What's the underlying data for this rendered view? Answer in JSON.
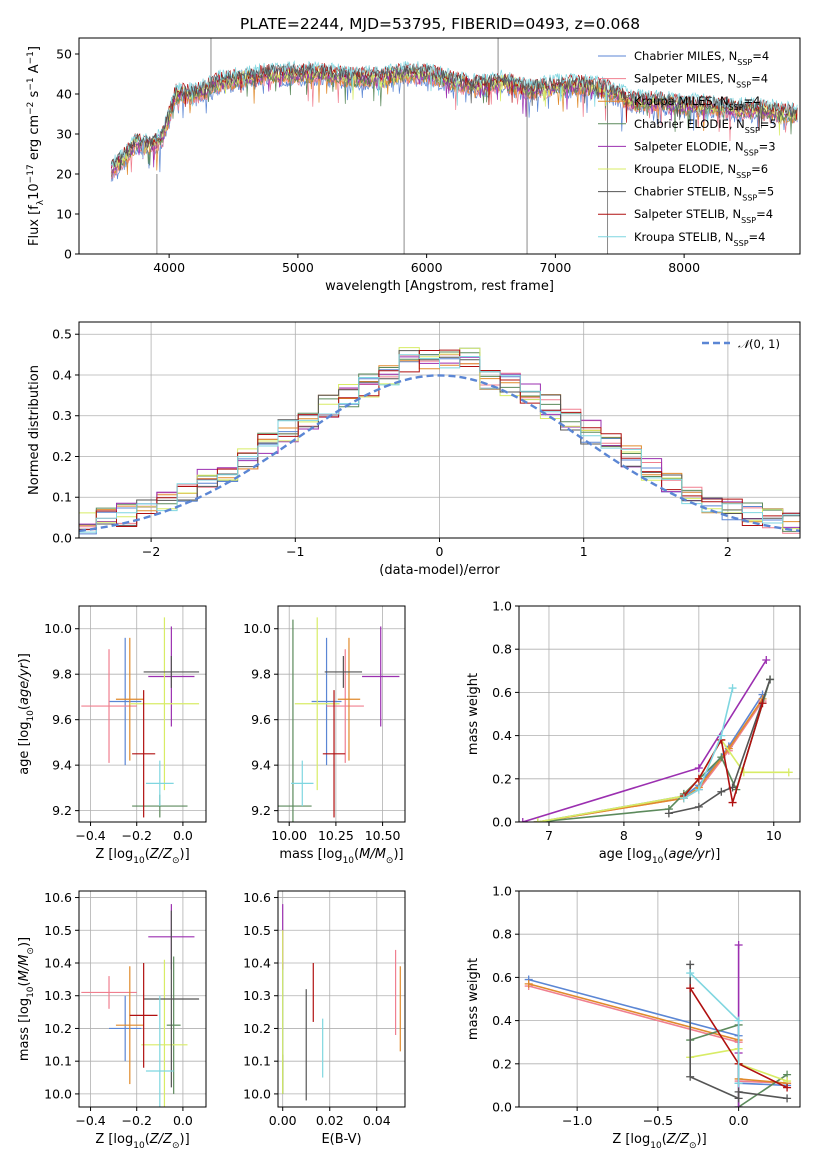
{
  "figure_title": "PLATE=2244, MJD=53795, FIBERID=0493, z=0.068",
  "series_colors": [
    "#5b86d4",
    "#f07f8f",
    "#e08a2c",
    "#5c8a5c",
    "#9b2fb0",
    "#d8ec66",
    "#555555",
    "#b01010",
    "#7fd6e0"
  ],
  "legend": [
    "Chabrier MILES, N_SSP=4",
    "Salpeter MILES, N_SSP=4",
    "Kroupa MILES, N_SSP=4",
    "Chabrier ELODIE, N_SSP=5",
    "Salpeter ELODIE, N_SSP=3",
    "Kroupa ELODIE, N_SSP=6",
    "Chabrier STELIB, N_SSP=5",
    "Salpeter STELIB, N_SSP=4",
    "Kroupa STELIB, N_SSP=4"
  ],
  "chart_data": [
    {
      "id": "spectrum",
      "type": "line",
      "xlabel": "wavelength [Angstrom, rest frame]",
      "ylabel": "Flux [f_λ 10^-17 erg cm^-2 s^-1 A^-1]",
      "xlim": [
        3300,
        8900
      ],
      "ylim": [
        0,
        54
      ],
      "xticks": [
        4000,
        5000,
        6000,
        7000,
        8000
      ],
      "yticks": [
        0,
        10,
        20,
        30,
        40,
        50
      ],
      "legend_position": "top-right",
      "grid": false,
      "continuum": {
        "x": [
          3550,
          3650,
          3750,
          3850,
          3950,
          4050,
          4200,
          4400,
          4600,
          4800,
          5000,
          5200,
          5400,
          5600,
          5800,
          6000,
          6200,
          6400,
          6600,
          6800,
          7000,
          7200,
          7400,
          7600,
          7800,
          8000,
          8200,
          8400,
          8600,
          8800
        ],
        "y": [
          21,
          24,
          28,
          27,
          29,
          40,
          40,
          43,
          44,
          45,
          45,
          45,
          44,
          44,
          45,
          45,
          43,
          42,
          43,
          41,
          42,
          42,
          41,
          38,
          38,
          37,
          37,
          36,
          36,
          35
        ]
      },
      "spikes": [
        {
          "x": 3905,
          "y_min": 0,
          "y_max": 20
        },
        {
          "x": 4325,
          "y_min": 40,
          "y_max": 54
        },
        {
          "x": 5825,
          "y_min": 0,
          "y_max": 45
        },
        {
          "x": 6555,
          "y_min": 45,
          "y_max": 54
        },
        {
          "x": 6780,
          "y_min": 0,
          "y_max": 42
        },
        {
          "x": 7405,
          "y_min": 0,
          "y_max": 40
        }
      ]
    },
    {
      "id": "residuals",
      "type": "line",
      "xlabel": "(data-model)/error",
      "ylabel": "Normed distribution",
      "xlim": [
        -2.5,
        2.5
      ],
      "ylim": [
        0,
        0.53
      ],
      "xticks": [
        -2,
        -1,
        0,
        1,
        2
      ],
      "yticks": [
        0.0,
        0.1,
        0.2,
        0.3,
        0.4,
        0.5
      ],
      "legend": "N(0,1)",
      "legend_position": "top-right",
      "grid": true
    },
    {
      "id": "age_vs_Z",
      "type": "scatter",
      "xlabel": "Z [log10(Z/Z_sun)]",
      "ylabel": "age [log10(age/yr)]",
      "xlim": [
        -0.45,
        0.1
      ],
      "ylim": [
        9.15,
        10.1
      ],
      "xticks": [
        -0.4,
        -0.2,
        0.0
      ],
      "yticks": [
        9.2,
        9.4,
        9.6,
        9.8,
        10.0
      ],
      "grid": true,
      "points": [
        {
          "series": 0,
          "x": -0.25,
          "y": 9.68,
          "xerr": 0.07,
          "yerr": 0.28
        },
        {
          "series": 1,
          "x": -0.32,
          "y": 9.66,
          "xerr": 0.12,
          "yerr": 0.25
        },
        {
          "series": 2,
          "x": -0.23,
          "y": 9.69,
          "xerr": 0.06,
          "yerr": 0.27
        },
        {
          "series": 3,
          "x": -0.1,
          "y": 9.22,
          "xerr": 0.12,
          "yerr": 0.05
        },
        {
          "series": 4,
          "x": -0.05,
          "y": 9.79,
          "xerr": 0.1,
          "yerr": 0.22
        },
        {
          "series": 5,
          "x": -0.08,
          "y": 9.67,
          "xerr": 0.15,
          "yerr": 0.38
        },
        {
          "series": 6,
          "x": -0.05,
          "y": 9.81,
          "xerr": 0.12,
          "yerr": 0.07
        },
        {
          "series": 7,
          "x": -0.17,
          "y": 9.45,
          "xerr": 0.05,
          "yerr": 0.28
        },
        {
          "series": 8,
          "x": -0.1,
          "y": 9.32,
          "xerr": 0.06,
          "yerr": 0.1
        }
      ]
    },
    {
      "id": "age_vs_mass",
      "type": "scatter",
      "xlabel": "mass [log10(M/M_sun)]",
      "ylabel": "",
      "xlim": [
        9.94,
        10.62
      ],
      "ylim": [
        9.15,
        10.1
      ],
      "xticks": [
        10.0,
        10.25,
        10.5
      ],
      "yticks": [
        9.2,
        9.4,
        9.6,
        9.8,
        10.0
      ],
      "grid": true,
      "points": [
        {
          "series": 0,
          "x": 10.2,
          "y": 9.68,
          "xerr": 0.08,
          "yerr": 0.28
        },
        {
          "series": 1,
          "x": 10.3,
          "y": 9.66,
          "xerr": 0.1,
          "yerr": 0.25
        },
        {
          "series": 2,
          "x": 10.32,
          "y": 9.69,
          "xerr": 0.06,
          "yerr": 0.27
        },
        {
          "series": 3,
          "x": 10.02,
          "y": 9.22,
          "xerr": 0.1,
          "yerr": 0.82
        },
        {
          "series": 4,
          "x": 10.49,
          "y": 9.79,
          "xerr": 0.1,
          "yerr": 0.22
        },
        {
          "series": 5,
          "x": 10.15,
          "y": 9.67,
          "xerr": 0.12,
          "yerr": 0.38
        },
        {
          "series": 6,
          "x": 10.29,
          "y": 9.81,
          "xerr": 0.1,
          "yerr": 0.07
        },
        {
          "series": 7,
          "x": 10.24,
          "y": 9.45,
          "xerr": 0.06,
          "yerr": 0.28
        },
        {
          "series": 8,
          "x": 10.07,
          "y": 9.32,
          "xerr": 0.06,
          "yerr": 0.1
        }
      ]
    },
    {
      "id": "weight_vs_age",
      "type": "line",
      "xlabel": "age [log10(age/yr)]",
      "ylabel": "mass weight",
      "xlim": [
        6.6,
        10.35
      ],
      "ylim": [
        0,
        1.0
      ],
      "xticks": [
        7,
        8,
        9,
        10
      ],
      "yticks": [
        0.0,
        0.2,
        0.4,
        0.6,
        0.8,
        1.0
      ],
      "grid": true,
      "series": [
        {
          "color_index": 0,
          "x": [
            6.85,
            8.8,
            9.0,
            9.4,
            9.85
          ],
          "y": [
            0.0,
            0.12,
            0.17,
            0.35,
            0.59
          ]
        },
        {
          "color_index": 1,
          "x": [
            6.85,
            8.8,
            9.0,
            9.4,
            9.85
          ],
          "y": [
            0.0,
            0.11,
            0.15,
            0.33,
            0.56
          ]
        },
        {
          "color_index": 2,
          "x": [
            6.85,
            8.8,
            9.0,
            9.4,
            9.85
          ],
          "y": [
            0.0,
            0.11,
            0.16,
            0.34,
            0.57
          ]
        },
        {
          "color_index": 3,
          "x": [
            6.85,
            8.6,
            8.8,
            9.3,
            9.5,
            9.95
          ],
          "y": [
            0.0,
            0.06,
            0.13,
            0.3,
            0.15,
            0.66
          ]
        },
        {
          "color_index": 4,
          "x": [
            6.65,
            9.0,
            9.9
          ],
          "y": [
            0.0,
            0.25,
            0.75
          ]
        },
        {
          "color_index": 5,
          "x": [
            6.85,
            8.8,
            9.0,
            9.3,
            9.6,
            10.2
          ],
          "y": [
            0.0,
            0.12,
            0.2,
            0.38,
            0.23,
            0.23
          ]
        },
        {
          "color_index": 6,
          "x": [
            8.6,
            9.0,
            9.3,
            9.45,
            9.95
          ],
          "y": [
            0.04,
            0.07,
            0.14,
            0.16,
            0.66
          ]
        },
        {
          "color_index": 7,
          "x": [
            8.8,
            9.0,
            9.3,
            9.45,
            9.85
          ],
          "y": [
            0.12,
            0.2,
            0.38,
            0.09,
            0.55
          ]
        },
        {
          "color_index": 8,
          "x": [
            8.8,
            9.0,
            9.3,
            9.45
          ],
          "y": [
            0.11,
            0.15,
            0.4,
            0.62
          ]
        }
      ]
    },
    {
      "id": "mass_vs_Z",
      "type": "scatter",
      "xlabel": "Z [log10(Z/Z_sun)]",
      "ylabel": "mass [log10(M/M_sun)]",
      "xlim": [
        -0.45,
        0.1
      ],
      "ylim": [
        9.96,
        10.62
      ],
      "xticks": [
        -0.4,
        -0.2,
        0.0
      ],
      "yticks": [
        10.0,
        10.1,
        10.2,
        10.3,
        10.4,
        10.5,
        10.6
      ],
      "grid": true,
      "points": [
        {
          "series": 0,
          "x": -0.25,
          "y": 10.2,
          "xerr": 0.07,
          "yerr": 0.1
        },
        {
          "series": 1,
          "x": -0.32,
          "y": 10.31,
          "xerr": 0.12,
          "yerr": 0.05
        },
        {
          "series": 2,
          "x": -0.23,
          "y": 10.21,
          "xerr": 0.06,
          "yerr": 0.18
        },
        {
          "series": 3,
          "x": -0.04,
          "y": 10.21,
          "xerr": 0.03,
          "yerr": 0.21
        },
        {
          "series": 4,
          "x": -0.05,
          "y": 10.48,
          "xerr": 0.1,
          "yerr": 0.1
        },
        {
          "series": 5,
          "x": -0.08,
          "y": 10.15,
          "xerr": 0.1,
          "yerr": 0.26
        },
        {
          "series": 6,
          "x": -0.05,
          "y": 10.29,
          "xerr": 0.12,
          "yerr": 0.27
        },
        {
          "series": 7,
          "x": -0.17,
          "y": 10.24,
          "xerr": 0.06,
          "yerr": 0.16
        },
        {
          "series": 8,
          "x": -0.1,
          "y": 10.07,
          "xerr": 0.06,
          "yerr": 0.23
        }
      ]
    },
    {
      "id": "mass_vs_EBV",
      "type": "scatter",
      "xlabel": "E(B-V)",
      "ylabel": "",
      "xlim": [
        -0.002,
        0.052
      ],
      "ylim": [
        9.96,
        10.62
      ],
      "xticks": [
        0.0,
        0.02,
        0.04
      ],
      "yticks": [
        10.0,
        10.1,
        10.2,
        10.3,
        10.4,
        10.5,
        10.6
      ],
      "grid": true,
      "points": [
        {
          "series": 0,
          "x": 0.0,
          "y": 10.2,
          "yerr": 0.2
        },
        {
          "series": 1,
          "x": 0.048,
          "y": 10.31,
          "yerr": 0.13
        },
        {
          "series": 2,
          "x": 0.05,
          "y": 10.26,
          "yerr": 0.13
        },
        {
          "series": 3,
          "x": 0.0,
          "y": 10.06,
          "yerr": 0.06
        },
        {
          "series": 4,
          "x": 0.0,
          "y": 10.48,
          "yerr": 0.1
        },
        {
          "series": 5,
          "x": 0.0,
          "y": 10.25,
          "yerr": 0.25
        },
        {
          "series": 6,
          "x": 0.01,
          "y": 10.15,
          "yerr": 0.17
        },
        {
          "series": 7,
          "x": 0.013,
          "y": 10.31,
          "yerr": 0.09
        },
        {
          "series": 8,
          "x": 0.017,
          "y": 10.14,
          "yerr": 0.09
        }
      ]
    },
    {
      "id": "weight_vs_Z",
      "type": "line",
      "xlabel": "Z [log10(Z/Z_sun)]",
      "ylabel": "mass weight",
      "xlim": [
        -1.36,
        0.38
      ],
      "ylim": [
        0,
        1.0
      ],
      "xticks": [
        -1.0,
        -0.5,
        0.0
      ],
      "yticks": [
        0.0,
        0.2,
        0.4,
        0.6,
        0.8,
        1.0
      ],
      "grid": true,
      "series": [
        {
          "color_index": 0,
          "x": [
            -1.3,
            0.0,
            0.0,
            0.3
          ],
          "y": [
            0.59,
            0.33,
            0.11,
            0.1
          ]
        },
        {
          "color_index": 1,
          "x": [
            -1.3,
            0.0,
            0.0,
            0.3
          ],
          "y": [
            0.56,
            0.3,
            0.12,
            0.11
          ]
        },
        {
          "color_index": 2,
          "x": [
            -1.3,
            0.0,
            0.0,
            0.3
          ],
          "y": [
            0.57,
            0.31,
            0.13,
            0.11
          ]
        },
        {
          "color_index": 3,
          "x": [
            -0.3,
            0.0,
            0.0,
            0.3
          ],
          "y": [
            0.31,
            0.38,
            0.0,
            0.15
          ]
        },
        {
          "color_index": 4,
          "x": [
            0.0,
            0.0,
            0.0
          ],
          "y": [
            0.0,
            0.25,
            0.75
          ]
        },
        {
          "color_index": 5,
          "x": [
            -0.3,
            0.0,
            0.0,
            0.3
          ],
          "y": [
            0.23,
            0.27,
            0.2,
            0.12
          ]
        },
        {
          "color_index": 6,
          "x": [
            -0.3,
            -0.3,
            0.0,
            0.0,
            0.3
          ],
          "y": [
            0.66,
            0.14,
            0.04,
            0.07,
            0.04
          ]
        },
        {
          "color_index": 7,
          "x": [
            -0.3,
            0.0,
            0.3
          ],
          "y": [
            0.55,
            0.2,
            0.09
          ]
        },
        {
          "color_index": 8,
          "x": [
            -0.3,
            0.0,
            0.0
          ],
          "y": [
            0.62,
            0.4,
            0.11
          ]
        }
      ]
    }
  ]
}
